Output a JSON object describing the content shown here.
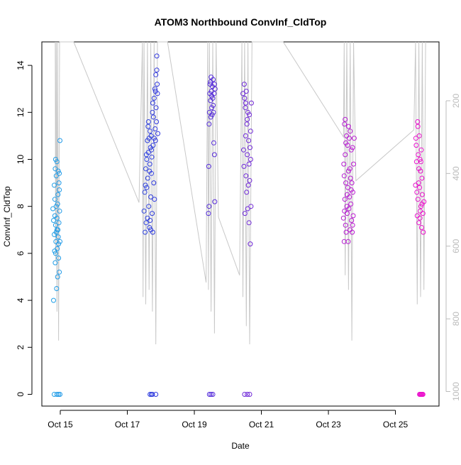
{
  "chart_data": {
    "type": "scatter",
    "title": "ATOM3 Northbound ConvInf_CldTop",
    "xlabel": "Date",
    "ylabel": "ConvInf_CldTop",
    "x_ticks": [
      "Oct 15",
      "Oct 17",
      "Oct 19",
      "Oct 21",
      "Oct 23",
      "Oct 25"
    ],
    "x_tick_days": [
      15,
      17,
      19,
      21,
      23,
      25
    ],
    "xlim": [
      14.45,
      26.3
    ],
    "ylim": [
      -0.5,
      15
    ],
    "y_ticks": [
      0,
      2,
      4,
      6,
      8,
      10,
      12,
      14
    ],
    "y2_ticks": [
      200,
      400,
      600,
      800,
      1000
    ],
    "y2_axis": "pressure, inverted",
    "y2_lim": [
      1040,
      38
    ],
    "grid": false,
    "legend": "none",
    "colors": {
      "point_start": "#1fa3e8",
      "point_mid": "#3333dd",
      "point_end": "#ee11cc",
      "pressure_line": "#c8c8c8",
      "axis": "#000000",
      "right_axis": "#bbbbbb"
    },
    "series": [
      {
        "values_note": "Points: [day_of_october, ConvInf_CldTop]",
        "points": [
          [
            14.78,
            7.9
          ],
          [
            14.8,
            4.0
          ],
          [
            14.82,
            8.9
          ],
          [
            14.83,
            6.1
          ],
          [
            14.84,
            7.6
          ],
          [
            14.85,
            9.6
          ],
          [
            14.86,
            10.0
          ],
          [
            14.86,
            7.2
          ],
          [
            14.87,
            6.5
          ],
          [
            14.88,
            8.0
          ],
          [
            14.88,
            6.9
          ],
          [
            14.89,
            4.5
          ],
          [
            14.9,
            7.5
          ],
          [
            14.9,
            9.9
          ],
          [
            14.91,
            6.2
          ],
          [
            14.92,
            5.0
          ],
          [
            14.93,
            7.0
          ],
          [
            14.93,
            8.5
          ],
          [
            14.94,
            9.5
          ],
          [
            14.94,
            6.7
          ],
          [
            14.95,
            5.8
          ],
          [
            14.96,
            7.3
          ],
          [
            14.96,
            9.0
          ],
          [
            14.97,
            8.7
          ],
          [
            14.97,
            5.2
          ],
          [
            14.98,
            7.8
          ],
          [
            14.99,
            6.5
          ],
          [
            14.99,
            10.8
          ],
          [
            14.8,
            7.4
          ],
          [
            14.82,
            6.8
          ],
          [
            14.84,
            8.3
          ],
          [
            14.86,
            6.0
          ],
          [
            14.88,
            9.3
          ],
          [
            14.9,
            7.0
          ],
          [
            14.92,
            8.1
          ],
          [
            14.95,
            6.4
          ],
          [
            14.97,
            9.4
          ],
          [
            14.85,
            5.6
          ],
          [
            14.82,
            0
          ],
          [
            14.9,
            0
          ],
          [
            14.95,
            0
          ],
          [
            14.99,
            0
          ],
          [
            17.5,
            7.8
          ],
          [
            17.52,
            8.6
          ],
          [
            17.53,
            6.9
          ],
          [
            17.55,
            9.6
          ],
          [
            17.56,
            7.3
          ],
          [
            17.57,
            10.2
          ],
          [
            17.58,
            8.8
          ],
          [
            17.6,
            10.8
          ],
          [
            17.6,
            7.5
          ],
          [
            17.61,
            9.2
          ],
          [
            17.62,
            11.4
          ],
          [
            17.63,
            10.3
          ],
          [
            17.64,
            8.0
          ],
          [
            17.65,
            10.9
          ],
          [
            17.66,
            7.1
          ],
          [
            17.67,
            9.8
          ],
          [
            17.68,
            11.2
          ],
          [
            17.69,
            10.5
          ],
          [
            17.7,
            8.4
          ],
          [
            17.7,
            7.0
          ],
          [
            17.71,
            11.0
          ],
          [
            17.72,
            9.4
          ],
          [
            17.73,
            10.1
          ],
          [
            17.74,
            7.7
          ],
          [
            17.75,
            12.0
          ],
          [
            17.76,
            6.9
          ],
          [
            17.77,
            10.6
          ],
          [
            17.78,
            11.8
          ],
          [
            17.79,
            9.0
          ],
          [
            17.8,
            12.6
          ],
          [
            17.81,
            8.3
          ],
          [
            17.82,
            13.0
          ],
          [
            17.83,
            11.3
          ],
          [
            17.84,
            10.8
          ],
          [
            17.85,
            13.6
          ],
          [
            17.86,
            12.2
          ],
          [
            17.87,
            11.6
          ],
          [
            17.88,
            14.4
          ],
          [
            17.89,
            13.2
          ],
          [
            17.9,
            12.8
          ],
          [
            17.91,
            11.1
          ],
          [
            17.54,
            8.9
          ],
          [
            17.58,
            10.0
          ],
          [
            17.63,
            11.6
          ],
          [
            17.66,
            9.5
          ],
          [
            17.72,
            10.4
          ],
          [
            17.76,
            12.4
          ],
          [
            17.8,
            10.9
          ],
          [
            17.84,
            12.9
          ],
          [
            17.88,
            13.8
          ],
          [
            17.68,
            7.4
          ],
          [
            17.68,
            0
          ],
          [
            17.72,
            0
          ],
          [
            17.75,
            0
          ],
          [
            17.85,
            0
          ],
          [
            19.42,
            7.7
          ],
          [
            19.43,
            9.7
          ],
          [
            19.44,
            11.5
          ],
          [
            19.45,
            12.0
          ],
          [
            19.46,
            12.8
          ],
          [
            19.47,
            13.2
          ],
          [
            19.48,
            12.5
          ],
          [
            19.49,
            11.8
          ],
          [
            19.5,
            13.5
          ],
          [
            19.51,
            12.9
          ],
          [
            19.52,
            12.2
          ],
          [
            19.53,
            11.9
          ],
          [
            19.54,
            13.1
          ],
          [
            19.55,
            12.6
          ],
          [
            19.56,
            13.4
          ],
          [
            19.57,
            12.0
          ],
          [
            19.58,
            10.7
          ],
          [
            19.59,
            12.8
          ],
          [
            19.6,
            10.2
          ],
          [
            19.61,
            8.2
          ],
          [
            19.62,
            13.0
          ],
          [
            19.44,
            8.0
          ],
          [
            19.48,
            13.3
          ],
          [
            19.52,
            12.7
          ],
          [
            19.56,
            12.3
          ],
          [
            19.6,
            13.2
          ],
          [
            19.45,
            0
          ],
          [
            19.5,
            0
          ],
          [
            19.55,
            0
          ],
          [
            20.45,
            12.8
          ],
          [
            20.47,
            10.4
          ],
          [
            20.48,
            9.7
          ],
          [
            20.5,
            12.6
          ],
          [
            20.51,
            7.7
          ],
          [
            20.52,
            12.2
          ],
          [
            20.53,
            11.0
          ],
          [
            20.54,
            9.3
          ],
          [
            20.55,
            12.9
          ],
          [
            20.56,
            8.6
          ],
          [
            20.57,
            11.5
          ],
          [
            20.58,
            10.2
          ],
          [
            20.59,
            7.9
          ],
          [
            20.6,
            12.0
          ],
          [
            20.61,
            8.9
          ],
          [
            20.62,
            10.8
          ],
          [
            20.63,
            7.3
          ],
          [
            20.64,
            11.9
          ],
          [
            20.65,
            9.1
          ],
          [
            20.66,
            10.5
          ],
          [
            20.67,
            6.4
          ],
          [
            20.68,
            11.2
          ],
          [
            20.69,
            8.0
          ],
          [
            20.7,
            12.4
          ],
          [
            20.49,
            13.2
          ],
          [
            20.53,
            12.4
          ],
          [
            20.58,
            11.7
          ],
          [
            20.63,
            9.8
          ],
          [
            20.68,
            10.0
          ],
          [
            20.5,
            0
          ],
          [
            20.58,
            0
          ],
          [
            20.65,
            0
          ],
          [
            23.45,
            7.5
          ],
          [
            23.46,
            9.8
          ],
          [
            23.47,
            6.5
          ],
          [
            23.48,
            11.5
          ],
          [
            23.49,
            8.3
          ],
          [
            23.5,
            10.2
          ],
          [
            23.51,
            7.2
          ],
          [
            23.52,
            9.0
          ],
          [
            23.53,
            6.9
          ],
          [
            23.54,
            11.0
          ],
          [
            23.55,
            8.0
          ],
          [
            23.56,
            7.7
          ],
          [
            23.57,
            10.6
          ],
          [
            23.58,
            8.8
          ],
          [
            23.59,
            6.5
          ],
          [
            23.6,
            9.5
          ],
          [
            23.61,
            7.9
          ],
          [
            23.62,
            10.9
          ],
          [
            23.63,
            8.4
          ],
          [
            23.64,
            7.0
          ],
          [
            23.65,
            11.2
          ],
          [
            23.66,
            9.2
          ],
          [
            23.67,
            8.1
          ],
          [
            23.68,
            10.4
          ],
          [
            23.69,
            7.4
          ],
          [
            23.7,
            9.0
          ],
          [
            23.71,
            6.9
          ],
          [
            23.72,
            10.5
          ],
          [
            23.73,
            8.6
          ],
          [
            23.74,
            7.6
          ],
          [
            23.75,
            9.8
          ],
          [
            23.77,
            10.9
          ],
          [
            23.48,
            7.8
          ],
          [
            23.52,
            10.7
          ],
          [
            23.56,
            8.5
          ],
          [
            23.6,
            11.4
          ],
          [
            23.64,
            9.6
          ],
          [
            23.68,
            8.7
          ],
          [
            23.72,
            7.2
          ],
          [
            23.47,
            9.3
          ],
          [
            23.5,
            11.7
          ],
          [
            25.6,
            8.9
          ],
          [
            25.62,
            10.6
          ],
          [
            25.63,
            9.9
          ],
          [
            25.65,
            7.6
          ],
          [
            25.66,
            11.6
          ],
          [
            25.67,
            8.3
          ],
          [
            25.68,
            10.2
          ],
          [
            25.69,
            9.0
          ],
          [
            25.7,
            7.3
          ],
          [
            25.71,
            11.0
          ],
          [
            25.72,
            8.8
          ],
          [
            25.73,
            10.0
          ],
          [
            25.74,
            7.8
          ],
          [
            25.75,
            9.5
          ],
          [
            25.76,
            8.0
          ],
          [
            25.77,
            10.4
          ],
          [
            25.78,
            7.1
          ],
          [
            25.79,
            9.2
          ],
          [
            25.8,
            8.5
          ],
          [
            25.82,
            7.7
          ],
          [
            25.83,
            6.9
          ],
          [
            25.85,
            8.2
          ],
          [
            25.61,
            10.9
          ],
          [
            25.64,
            8.6
          ],
          [
            25.67,
            11.4
          ],
          [
            25.7,
            9.6
          ],
          [
            25.73,
            7.5
          ],
          [
            25.76,
            9.9
          ],
          [
            25.79,
            8.1
          ],
          [
            25.72,
            0
          ],
          [
            25.74,
            0
          ],
          [
            25.76,
            0
          ],
          [
            25.78,
            0
          ],
          [
            25.8,
            0
          ],
          [
            25.82,
            0
          ]
        ],
        "pressure_segments_note": "Grey pressure trace on the right (inverted) axis: [day_of_october, pressure]",
        "pressure_line": [
          [
            14.85,
            38
          ],
          [
            14.86,
            640
          ],
          [
            14.88,
            38
          ],
          [
            14.9,
            780
          ],
          [
            14.92,
            38
          ],
          [
            14.95,
            860
          ],
          [
            14.98,
            38
          ],
          [
            15.02,
            38
          ],
          [
            15.4,
            38
          ],
          [
            17.35,
            480
          ],
          [
            17.45,
            38
          ],
          [
            17.47,
            740
          ],
          [
            17.5,
            38
          ],
          [
            17.55,
            760
          ],
          [
            17.6,
            38
          ],
          [
            17.65,
            720
          ],
          [
            17.7,
            38
          ],
          [
            17.75,
            780
          ],
          [
            17.8,
            38
          ],
          [
            17.85,
            870
          ],
          [
            17.9,
            38
          ],
          [
            18.0,
            38
          ],
          [
            18.2,
            38
          ],
          [
            19.35,
            700
          ],
          [
            19.4,
            38
          ],
          [
            19.42,
            720
          ],
          [
            19.45,
            38
          ],
          [
            19.5,
            780
          ],
          [
            19.55,
            38
          ],
          [
            19.6,
            840
          ],
          [
            19.65,
            38
          ],
          [
            19.72,
            520
          ],
          [
            20.35,
            680
          ],
          [
            20.42,
            38
          ],
          [
            20.45,
            740
          ],
          [
            20.5,
            38
          ],
          [
            20.55,
            820
          ],
          [
            20.6,
            38
          ],
          [
            20.65,
            870
          ],
          [
            20.72,
            38
          ],
          [
            21.65,
            38
          ],
          [
            23.45,
            300
          ],
          [
            23.47,
            38
          ],
          [
            23.5,
            680
          ],
          [
            23.55,
            38
          ],
          [
            23.6,
            720
          ],
          [
            23.65,
            38
          ],
          [
            23.7,
            860
          ],
          [
            23.75,
            38
          ],
          [
            23.82,
            420
          ],
          [
            25.55,
            280
          ],
          [
            25.6,
            38
          ],
          [
            25.65,
            760
          ],
          [
            25.7,
            38
          ],
          [
            25.75,
            740
          ],
          [
            25.8,
            38
          ],
          [
            25.85,
            720
          ],
          [
            25.9,
            38
          ]
        ]
      }
    ]
  }
}
